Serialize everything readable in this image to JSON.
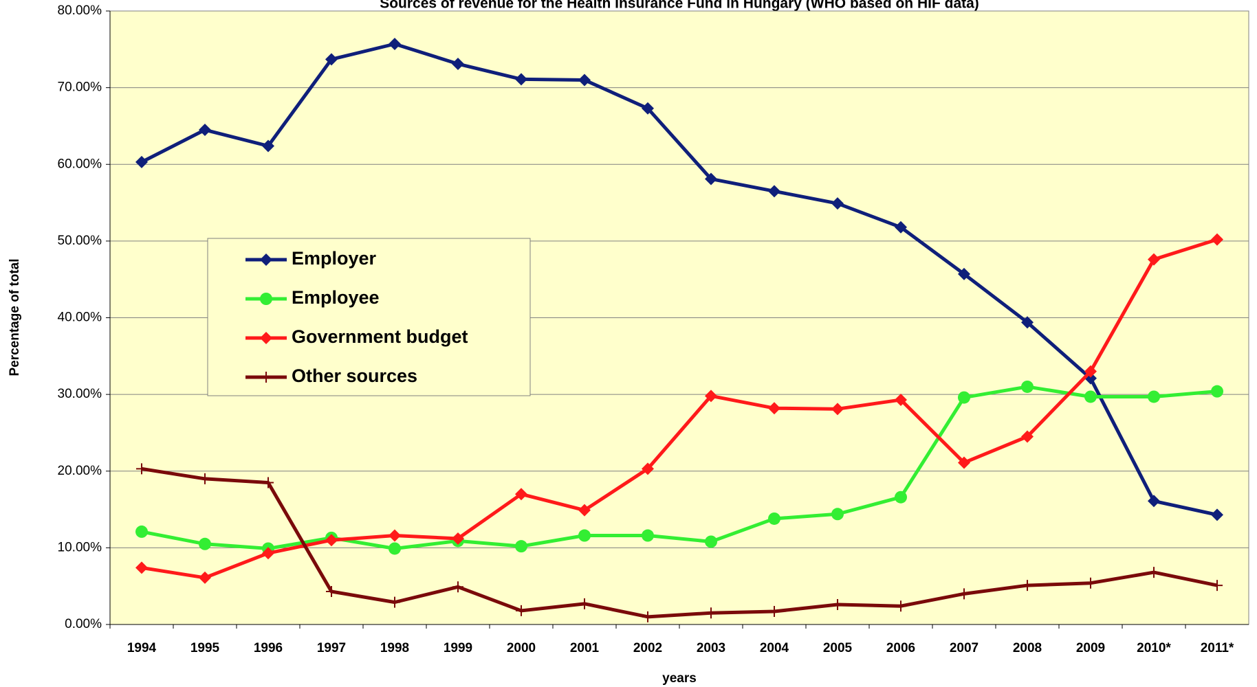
{
  "chart_data": {
    "type": "line",
    "title": "Sources of revenue for the Health Insurance Fund in Hungary (WHO based on HIF data)",
    "x_label": "years",
    "y_label": "Percentage of total",
    "categories": [
      "1994",
      "1995",
      "1996",
      "1997",
      "1998",
      "1999",
      "2000",
      "2001",
      "2002",
      "2003",
      "2004",
      "2005",
      "2006",
      "2007",
      "2008",
      "2009",
      "2010*",
      "2011*"
    ],
    "series": [
      {
        "name": "Employer",
        "color": "#0f1f7a",
        "marker": "diamond",
        "values": [
          60.3,
          64.5,
          62.4,
          73.7,
          75.7,
          73.1,
          71.1,
          71.0,
          67.3,
          58.1,
          56.5,
          54.9,
          51.8,
          45.7,
          39.4,
          32.1,
          16.1,
          14.3
        ]
      },
      {
        "name": "Employee",
        "color": "#33ee33",
        "marker": "circle",
        "values": [
          12.1,
          10.5,
          9.9,
          11.3,
          9.9,
          10.9,
          10.2,
          11.6,
          11.6,
          10.8,
          13.8,
          14.4,
          16.6,
          29.6,
          31.0,
          29.7,
          29.7,
          30.4
        ]
      },
      {
        "name": "Government budget",
        "color": "#ff1a1a",
        "marker": "diamond",
        "values": [
          7.4,
          6.1,
          9.3,
          11.0,
          11.6,
          11.2,
          17.0,
          14.9,
          20.3,
          29.8,
          28.2,
          28.1,
          29.3,
          21.1,
          24.5,
          33.0,
          47.6,
          50.2
        ]
      },
      {
        "name": "Other sources",
        "color": "#7a0a0a",
        "marker": "plus",
        "values": [
          20.3,
          19.0,
          18.5,
          4.3,
          2.9,
          4.9,
          1.8,
          2.7,
          1.0,
          1.5,
          1.7,
          2.6,
          2.4,
          4.0,
          5.1,
          5.4,
          6.8,
          5.1
        ]
      }
    ],
    "ylim": [
      0,
      80
    ],
    "yticks": [
      {
        "value": 0,
        "label": "0.00%"
      },
      {
        "value": 10,
        "label": "10.00%"
      },
      {
        "value": 20,
        "label": "20.00%"
      },
      {
        "value": 30,
        "label": "30.00%"
      },
      {
        "value": 40,
        "label": "40.00%"
      },
      {
        "value": 50,
        "label": "50.00%"
      },
      {
        "value": 60,
        "label": "60.00%"
      },
      {
        "value": 70,
        "label": "70.00%"
      },
      {
        "value": 80,
        "label": "80.00%"
      }
    ],
    "grid": true,
    "background": "#ffffcc",
    "legend_position": "left"
  }
}
